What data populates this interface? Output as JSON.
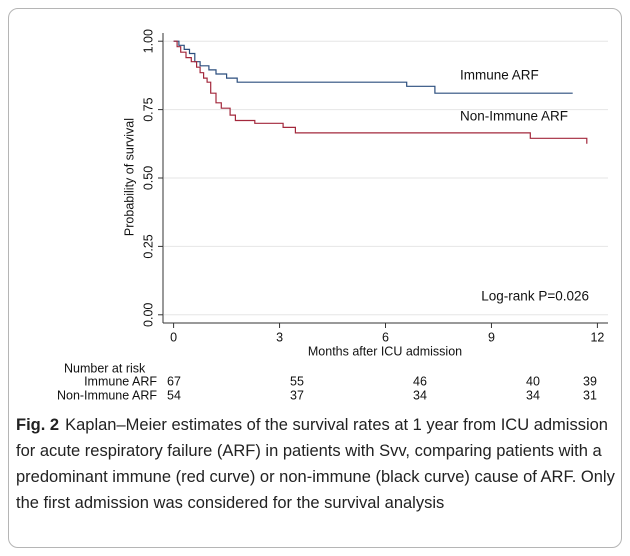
{
  "chart_data": {
    "type": "line",
    "step": true,
    "ylabel": "Probability of survival",
    "xlabel": "Months after ICU admission",
    "xlim": [
      -0.3,
      12.3
    ],
    "xticks": [
      0,
      3,
      6,
      9,
      12
    ],
    "ylim": [
      -0.03,
      1.03
    ],
    "yticks": [
      {
        "value": 0,
        "label": "0.00"
      },
      {
        "value": 0.25,
        "label": "0.25"
      },
      {
        "value": 0.5,
        "label": "0.50"
      },
      {
        "value": 0.75,
        "label": "0.75"
      },
      {
        "value": 1,
        "label": "1.00"
      }
    ],
    "grid": true,
    "annotation": "Log-rank P=0.026",
    "series": [
      {
        "name": "Immune ARF",
        "color": "#2b4e7e",
        "x": [
          0,
          0.15,
          0.15,
          0.3,
          0.3,
          0.45,
          0.45,
          0.6,
          0.6,
          0.75,
          0.75,
          1.0,
          1.0,
          1.2,
          1.2,
          1.5,
          1.5,
          1.8,
          1.8,
          6.6,
          6.6,
          7.4,
          7.4,
          11.3
        ],
        "values": [
          1,
          1,
          0.985,
          0.985,
          0.97,
          0.97,
          0.955,
          0.955,
          0.925,
          0.925,
          0.91,
          0.91,
          0.895,
          0.895,
          0.88,
          0.88,
          0.865,
          0.865,
          0.85,
          0.85,
          0.835,
          0.835,
          0.81,
          0.81
        ]
      },
      {
        "name": "Non-Immune ARF",
        "color": "#a3283c",
        "x": [
          0,
          0.1,
          0.1,
          0.2,
          0.2,
          0.35,
          0.35,
          0.5,
          0.5,
          0.65,
          0.65,
          0.75,
          0.75,
          0.85,
          0.85,
          0.95,
          0.95,
          1.05,
          1.05,
          1.2,
          1.2,
          1.35,
          1.35,
          1.6,
          1.6,
          1.75,
          1.75,
          2.3,
          2.3,
          3.1,
          3.1,
          3.45,
          3.45,
          10.1,
          10.1,
          11.7,
          11.7
        ],
        "values": [
          1,
          1,
          0.98,
          0.98,
          0.96,
          0.96,
          0.94,
          0.94,
          0.925,
          0.925,
          0.905,
          0.905,
          0.885,
          0.885,
          0.865,
          0.865,
          0.85,
          0.85,
          0.81,
          0.81,
          0.775,
          0.775,
          0.755,
          0.755,
          0.73,
          0.73,
          0.71,
          0.71,
          0.7,
          0.7,
          0.685,
          0.685,
          0.665,
          0.665,
          0.645,
          0.645,
          0.625
        ]
      }
    ],
    "risk_table": {
      "title": "Number at risk",
      "rows": [
        {
          "name": "Immune ARF",
          "values": [
            67,
            55,
            46,
            40,
            39
          ]
        },
        {
          "name": "Non-Immune ARF",
          "values": [
            54,
            37,
            34,
            34,
            31
          ]
        }
      ]
    }
  },
  "caption": {
    "label": "Fig. 2",
    "text": "Kaplan–Meier estimates of the survival rates at 1 year from ICU admission for acute respiratory failure (ARF) in patients with Svv, comparing patients with a predominant immune (red curve) or non-immune (black curve) cause of ARF. Only the first admission was considered for the survival analysis"
  }
}
